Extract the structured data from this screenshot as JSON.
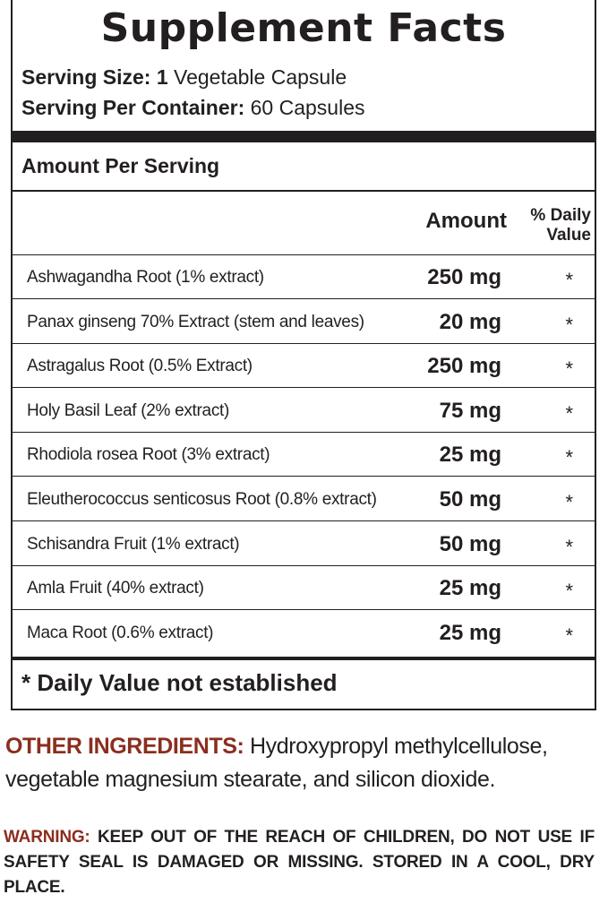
{
  "title": "Supplement Facts",
  "serving": {
    "size_label": "Serving Size: 1",
    "size_value": " Vegetable Capsule",
    "per_container_label": "Serving Per Container:",
    "per_container_value": " 60 Capsules"
  },
  "amount_per_serving": "Amount Per Serving",
  "columns": {
    "amount": "Amount",
    "daily_value_line1": "% Daily",
    "daily_value_line2": "Value"
  },
  "ingredients": [
    {
      "name": "Ashwagandha Root (1% extract)",
      "amount": "250 mg",
      "dv": "*"
    },
    {
      "name": "Panax ginseng 70% Extract (stem and leaves)",
      "amount": "20 mg",
      "dv": "*"
    },
    {
      "name": "Astragalus Root (0.5% Extract)",
      "amount": "250 mg",
      "dv": "*"
    },
    {
      "name": "Holy Basil Leaf (2% extract)",
      "amount": "75 mg",
      "dv": "*"
    },
    {
      "name": "Rhodiola rosea Root (3% extract)",
      "amount": "25 mg",
      "dv": "*"
    },
    {
      "name": "Eleutherococcus senticosus Root (0.8% extract)",
      "amount": "50 mg",
      "dv": "*"
    },
    {
      "name": "Schisandra Fruit (1% extract)",
      "amount": "50 mg",
      "dv": "*"
    },
    {
      "name": "Amla Fruit (40% extract)",
      "amount": "25 mg",
      "dv": "*"
    },
    {
      "name": "Maca Root (0.6% extract)",
      "amount": "25 mg",
      "dv": "*"
    }
  ],
  "footnote": "* Daily Value not established",
  "other_ingredients": {
    "label": "OTHER INGREDIENTS:",
    "text": " Hydroxypropyl methylcellulose, vegetable magnesium stearate, and silicon dioxide."
  },
  "warning": {
    "label": "WARNING:",
    "text": " KEEP OUT OF THE REACH OF CHILDREN, DO NOT USE IF SAFETY SEAL IS DAMAGED OR MISSING. STORED IN A COOL, DRY PLACE."
  },
  "colors": {
    "text": "#231f20",
    "accent": "#8b2e1e"
  }
}
